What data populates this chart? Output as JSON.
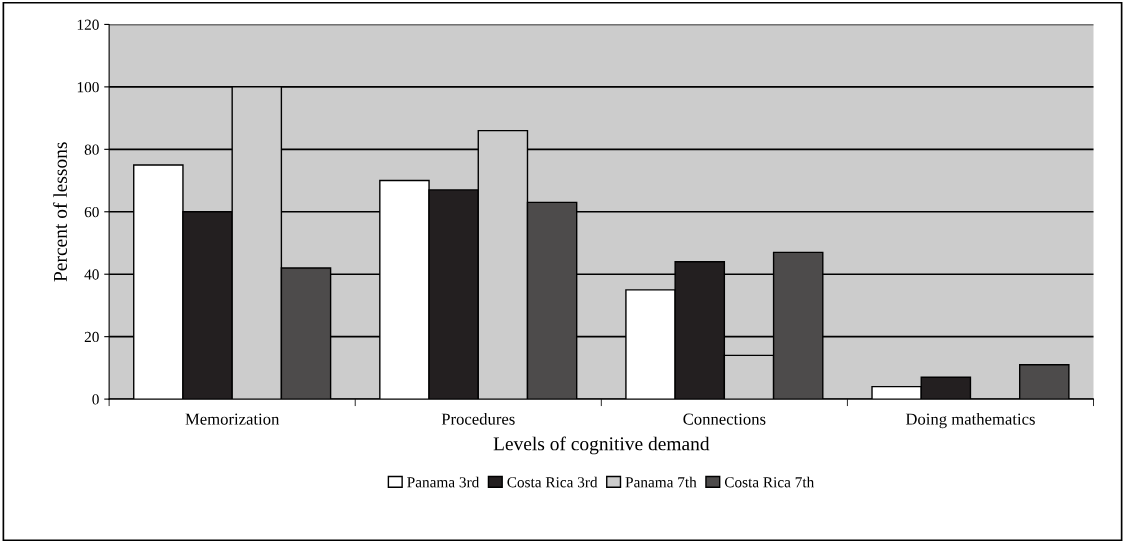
{
  "chart_data": {
    "type": "bar",
    "xlabel": "Levels of cognitive demand",
    "ylabel": "Percent of lessons",
    "categories": [
      "Memorization",
      "Procedures",
      "Connections",
      "Doing mathematics"
    ],
    "series": [
      {
        "name": "Panama 3rd",
        "color": "#ffffff",
        "values": [
          75,
          70,
          35,
          4
        ]
      },
      {
        "name": "Costa Rica 3rd",
        "color": "#231f20",
        "values": [
          60,
          67,
          44,
          7
        ]
      },
      {
        "name": "Panama 7th",
        "color": "#cccccc",
        "values": [
          100,
          86,
          14,
          null
        ]
      },
      {
        "name": "Costa Rica 7th",
        "color": "#4d4b4b",
        "values": [
          42,
          63,
          47,
          11
        ]
      }
    ],
    "ylim": [
      0,
      120
    ],
    "yticks": [
      0,
      20,
      40,
      60,
      80,
      100,
      120
    ],
    "grid": "y",
    "legend": "bottom"
  }
}
